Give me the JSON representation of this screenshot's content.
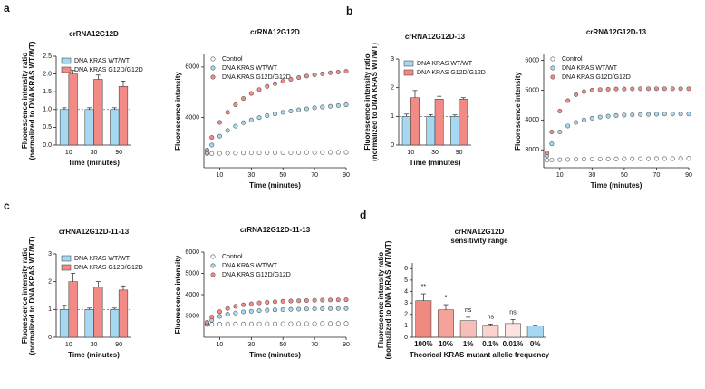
{
  "chart_data": [
    {
      "type": "bar",
      "panel": "a",
      "title": "crRNA12G12D",
      "ylabel": [
        "Fluorescence intensity ratio",
        "(normalized to DNA KRAS WT/WT)"
      ],
      "xlabel": "Time (minutes)",
      "categories": [
        "10",
        "30",
        "90"
      ],
      "series": [
        {
          "name": "DNA KRAS WT/WT",
          "color": "#a6d9f1",
          "values": [
            1,
            1,
            1
          ],
          "errors": [
            0.05,
            0.05,
            0.05
          ]
        },
        {
          "name": "DNA KRAS G12D/G12D",
          "color": "#f28b85",
          "values": [
            2.0,
            1.85,
            1.65
          ],
          "errors": [
            0.1,
            0.12,
            0.15
          ]
        }
      ],
      "ylim": [
        0,
        2.5
      ],
      "yticks": [
        {
          "value": 0,
          "label": "0.0"
        },
        {
          "value": 0.5,
          "label": "0.5"
        },
        {
          "value": 1,
          "label": "1.0"
        },
        {
          "value": 1.5,
          "label": "1.5"
        },
        {
          "value": 2,
          "label": "2.0"
        },
        {
          "value": 2.5,
          "label": "2.5"
        }
      ],
      "refline": 1,
      "legend": "top-left"
    },
    {
      "type": "line",
      "title": "crRNA12G12D",
      "ylabel": [
        "Fluorescence intensity"
      ],
      "xlabel": "Time (minutes)",
      "x": [
        2,
        5,
        10,
        15,
        20,
        25,
        30,
        35,
        40,
        45,
        50,
        55,
        60,
        65,
        70,
        75,
        80,
        85,
        90
      ],
      "series": [
        {
          "name": "Control",
          "color": "#ffffff",
          "values": [
            2560,
            2565,
            2570,
            2575,
            2580,
            2585,
            2590,
            2590,
            2595,
            2595,
            2600,
            2600,
            2600,
            2605,
            2605,
            2605,
            2610,
            2610,
            2610
          ]
        },
        {
          "name": "DNA KRAS WT/WT",
          "color": "#a6d9f1",
          "values": [
            2600,
            2900,
            3250,
            3480,
            3650,
            3790,
            3900,
            3990,
            4070,
            4140,
            4200,
            4250,
            4300,
            4340,
            4380,
            4410,
            4440,
            4470,
            4500
          ]
        },
        {
          "name": "DNA KRAS G12D/G12D",
          "color": "#f28b85",
          "values": [
            2700,
            3200,
            3800,
            4200,
            4500,
            4750,
            4950,
            5100,
            5230,
            5340,
            5430,
            5510,
            5580,
            5640,
            5690,
            5730,
            5770,
            5800,
            5830
          ]
        }
      ],
      "xlim": [
        0,
        90
      ],
      "xticks": [
        10,
        30,
        50,
        70,
        90
      ],
      "ylim": [
        2000,
        6500
      ],
      "yticks": [
        4000,
        6000
      ],
      "legend": "top-left"
    },
    {
      "type": "bar",
      "panel": "b",
      "title": "crRNA12G12D-13",
      "ylabel": [
        "Fluorescence intensity ratio",
        "(normalized to DNA KRAS WT/WT)"
      ],
      "xlabel": "Time (minutes)",
      "categories": [
        "10",
        "30",
        "90"
      ],
      "series": [
        {
          "name": "DNA KRAS WT/WT",
          "color": "#a6d9f1",
          "values": [
            1,
            1,
            1
          ],
          "errors": [
            0.08,
            0.06,
            0.05
          ]
        },
        {
          "name": "DNA KRAS G12D/G12D",
          "color": "#f28b85",
          "values": [
            1.65,
            1.6,
            1.6
          ],
          "errors": [
            0.25,
            0.1,
            0.05
          ]
        }
      ],
      "ylim": [
        0,
        3
      ],
      "yticks": [
        0,
        1,
        2,
        3
      ],
      "refline": 1,
      "legend": "top-left"
    },
    {
      "type": "line",
      "title": "crRNA12G12D-13",
      "ylabel": [
        "Fluorescence intensity"
      ],
      "xlabel": "Time (minutes)",
      "x": [
        2,
        5,
        10,
        15,
        20,
        25,
        30,
        35,
        40,
        45,
        50,
        55,
        60,
        65,
        70,
        75,
        80,
        85,
        90
      ],
      "series": [
        {
          "name": "Control",
          "color": "#ffffff",
          "values": [
            2650,
            2660,
            2670,
            2675,
            2680,
            2685,
            2690,
            2690,
            2695,
            2695,
            2700,
            2700,
            2700,
            2700,
            2705,
            2705,
            2705,
            2710,
            2710
          ]
        },
        {
          "name": "DNA KRAS WT/WT",
          "color": "#a6d9f1",
          "values": [
            2800,
            3200,
            3600,
            3800,
            3920,
            4000,
            4060,
            4100,
            4130,
            4150,
            4165,
            4175,
            4185,
            4190,
            4195,
            4200,
            4200,
            4200,
            4200
          ]
        },
        {
          "name": "DNA KRAS G12D/G12D",
          "color": "#f28b85",
          "values": [
            2900,
            3600,
            4300,
            4650,
            4850,
            4950,
            5000,
            5020,
            5030,
            5040,
            5040,
            5045,
            5050,
            5050,
            5050,
            5050,
            5050,
            5050,
            5050
          ]
        }
      ],
      "xlim": [
        0,
        90
      ],
      "xticks": [
        10,
        30,
        50,
        70,
        90
      ],
      "ylim": [
        2400,
        6200
      ],
      "yticks": [
        3000,
        4000,
        5000,
        6000
      ],
      "legend": "top-left"
    },
    {
      "type": "bar",
      "panel": "c",
      "title": "crRNA12G12D-11-13",
      "ylabel": [
        "Fluorescence intensity ratio",
        "(normalized to DNA KRAS WT/WT)"
      ],
      "xlabel": "Time (minutes)",
      "categories": [
        "10",
        "30",
        "90"
      ],
      "series": [
        {
          "name": "DNA KRAS WT/WT",
          "color": "#a6d9f1",
          "values": [
            1,
            1,
            1
          ],
          "errors": [
            0.15,
            0.05,
            0.05
          ]
        },
        {
          "name": "DNA KRAS G12D/G12D",
          "color": "#f28b85",
          "values": [
            2.0,
            1.8,
            1.7
          ],
          "errors": [
            0.3,
            0.2,
            0.15
          ]
        }
      ],
      "ylim": [
        0,
        3
      ],
      "yticks": [
        0,
        1,
        2,
        3
      ],
      "refline": 1,
      "legend": "top-left"
    },
    {
      "type": "line",
      "title": "crRNA12G12D-11-13",
      "ylabel": [
        "Fluorescence intensity"
      ],
      "xlabel": "Time (minutes)",
      "x": [
        2,
        5,
        10,
        15,
        20,
        25,
        30,
        35,
        40,
        45,
        50,
        55,
        60,
        65,
        70,
        75,
        80,
        85,
        90
      ],
      "series": [
        {
          "name": "Control",
          "color": "#ffffff",
          "values": [
            2600,
            2605,
            2610,
            2615,
            2620,
            2620,
            2625,
            2625,
            2630,
            2630,
            2635,
            2635,
            2640,
            2640,
            2640,
            2645,
            2645,
            2650,
            2650
          ]
        },
        {
          "name": "DNA KRAS WT/WT",
          "color": "#a6d9f1",
          "values": [
            2650,
            2800,
            2980,
            3080,
            3140,
            3190,
            3220,
            3250,
            3270,
            3285,
            3300,
            3310,
            3320,
            3330,
            3335,
            3340,
            3345,
            3350,
            3350
          ]
        },
        {
          "name": "DNA KRAS G12D/G12D",
          "color": "#f28b85",
          "values": [
            2700,
            2950,
            3200,
            3350,
            3450,
            3520,
            3570,
            3610,
            3640,
            3665,
            3685,
            3700,
            3715,
            3725,
            3735,
            3745,
            3750,
            3755,
            3760
          ]
        }
      ],
      "xlim": [
        0,
        90
      ],
      "xticks": [
        10,
        30,
        50,
        70,
        90
      ],
      "ylim": [
        2000,
        6000
      ],
      "yticks": [
        3000,
        4000,
        5000,
        6000
      ],
      "legend": "top-left"
    },
    {
      "type": "bar",
      "panel": "d",
      "title": "crRNA12G12D",
      "subtitle": "sensitivity range",
      "ylabel": [
        "Fluorescence intensity ratio",
        "(normalized to DNA KRAS WT/WT)"
      ],
      "xlabel": "Theorical KRAS mutant allelic frequency",
      "categories": [
        "100%",
        "10%",
        "1%",
        "0.1%",
        "0.01%",
        "0%"
      ],
      "series": [
        {
          "colors": [
            "#f08a80",
            "#f4a29a",
            "#f7bdb7",
            "#fad3cf",
            "#fbe3e1",
            "#a6d9f1"
          ],
          "values": [
            3.2,
            2.4,
            1.45,
            1.05,
            1.2,
            1.0
          ],
          "errors": [
            0.6,
            0.45,
            0.3,
            0.1,
            0.35,
            0.05
          ]
        }
      ],
      "annotations": [
        "**",
        "*",
        "ns",
        "ns",
        "ns"
      ],
      "ylim": [
        0,
        6.5
      ],
      "yticks": [
        0,
        1,
        2,
        3,
        4,
        5,
        6
      ],
      "refline": 1
    }
  ]
}
